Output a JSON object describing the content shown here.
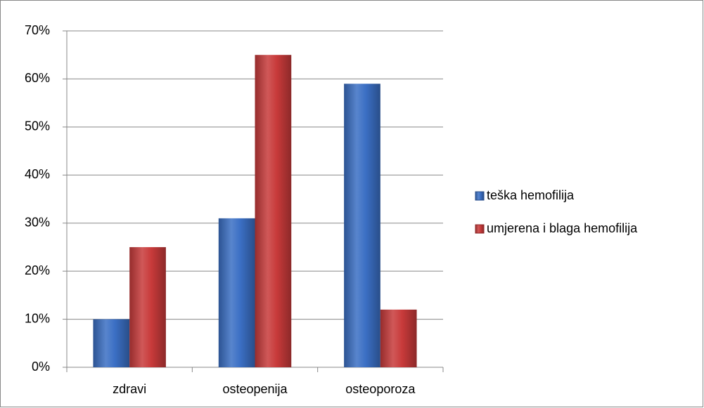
{
  "chart_data": {
    "type": "bar",
    "categories": [
      "zdravi",
      "osteopenija",
      "osteoporoza"
    ],
    "series": [
      {
        "name": "teška hemofilija",
        "color": "#3b6fc4",
        "values": [
          10,
          31,
          59
        ]
      },
      {
        "name": "umjerena i blaga hemofilija",
        "color": "#c83a3a",
        "values": [
          25,
          65,
          12
        ]
      }
    ],
    "ylim": [
      0,
      70
    ],
    "yticks": [
      {
        "value": 0,
        "label": "0%"
      },
      {
        "value": 10,
        "label": "10%"
      },
      {
        "value": 20,
        "label": "20%"
      },
      {
        "value": 30,
        "label": "30%"
      },
      {
        "value": 40,
        "label": "40%"
      },
      {
        "value": 50,
        "label": "50%"
      },
      {
        "value": 60,
        "label": "60%"
      },
      {
        "value": 70,
        "label": "70%"
      }
    ],
    "grid": true,
    "legend": "right"
  }
}
